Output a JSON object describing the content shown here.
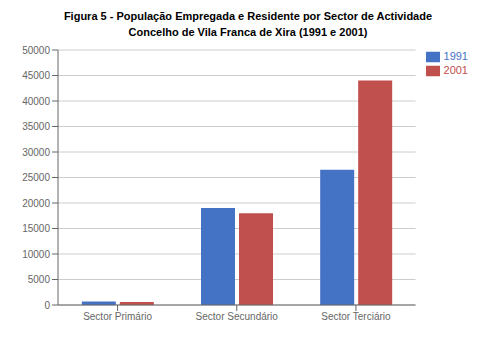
{
  "chart_data": {
    "type": "bar",
    "title": "Figura 5 - População Empregada e Residente por Sector de Actividade",
    "subtitle": "Concelho de Vila Franca de Xira (1991 e 2001)",
    "categories": [
      "Sector Primário",
      "Sector Secundário",
      "Sector Terciário"
    ],
    "series": [
      {
        "name": "1991",
        "color": "#4472C4",
        "values": [
          700,
          19000,
          26500
        ]
      },
      {
        "name": "2001",
        "color": "#C0504D",
        "values": [
          600,
          18000,
          44000
        ]
      }
    ],
    "ylim": [
      0,
      50000
    ],
    "yticks": [
      0,
      5000,
      10000,
      15000,
      20000,
      25000,
      30000,
      35000,
      40000,
      45000,
      50000
    ],
    "grid": true,
    "legend": "upper right"
  }
}
